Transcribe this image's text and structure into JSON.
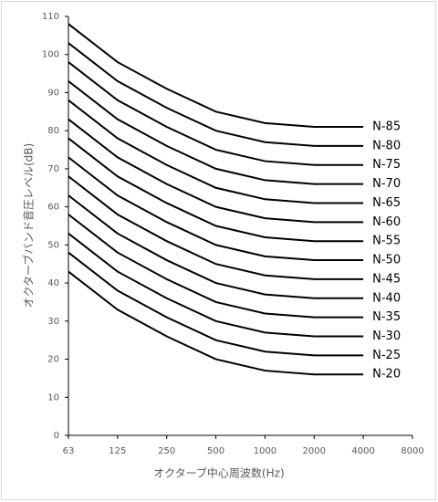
{
  "chart_data": {
    "type": "line",
    "x_label": "オクターブ中心周波数(Hz)",
    "y_label": "オクターブバンド音圧レベル(dB)",
    "categories": [
      "63",
      "125",
      "250",
      "500",
      "1000",
      "2000",
      "4000",
      "8000"
    ],
    "ylim": [
      0,
      110
    ],
    "yticks": [
      0,
      10,
      20,
      30,
      40,
      50,
      60,
      70,
      80,
      90,
      100,
      110
    ],
    "grid": false,
    "color": "#000000",
    "series": [
      {
        "name": "N-85",
        "values": [
          108,
          98,
          91,
          85,
          82,
          81,
          81,
          null
        ]
      },
      {
        "name": "N-80",
        "values": [
          103,
          93,
          86,
          80,
          77,
          76,
          76,
          null
        ]
      },
      {
        "name": "N-75",
        "values": [
          98,
          88,
          81,
          75,
          72,
          71,
          71,
          null
        ]
      },
      {
        "name": "N-70",
        "values": [
          93,
          83,
          76,
          70,
          67,
          66,
          66,
          null
        ]
      },
      {
        "name": "N-65",
        "values": [
          88,
          78,
          71,
          65,
          62,
          61,
          61,
          null
        ]
      },
      {
        "name": "N-60",
        "values": [
          83,
          73,
          66,
          60,
          57,
          56,
          56,
          null
        ]
      },
      {
        "name": "N-55",
        "values": [
          78,
          68,
          61,
          55,
          52,
          51,
          51,
          null
        ]
      },
      {
        "name": "N-50",
        "values": [
          73,
          63,
          56,
          50,
          47,
          46,
          46,
          null
        ]
      },
      {
        "name": "N-45",
        "values": [
          68,
          58,
          51,
          45,
          42,
          41,
          41,
          null
        ]
      },
      {
        "name": "N-40",
        "values": [
          63,
          53,
          46,
          40,
          37,
          36,
          36,
          null
        ]
      },
      {
        "name": "N-35",
        "values": [
          58,
          48,
          41,
          35,
          32,
          31,
          31,
          null
        ]
      },
      {
        "name": "N-30",
        "values": [
          53,
          43,
          36,
          30,
          27,
          26,
          26,
          null
        ]
      },
      {
        "name": "N-25",
        "values": [
          48,
          38,
          31,
          25,
          22,
          21,
          21,
          null
        ]
      },
      {
        "name": "N-20",
        "values": [
          43,
          33,
          26,
          20,
          17,
          16,
          16,
          null
        ]
      }
    ]
  }
}
